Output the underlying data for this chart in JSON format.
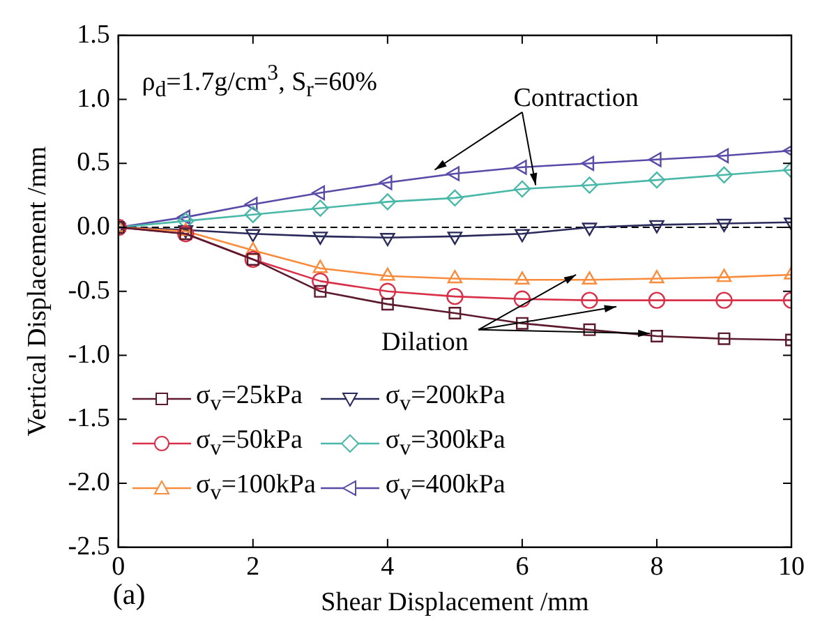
{
  "chart_data": {
    "type": "line",
    "xlabel": "Shear Displacement /mm",
    "ylabel": "Vertical Displacement /mm",
    "x": [
      0,
      1,
      2,
      3,
      4,
      5,
      6,
      7,
      8,
      9,
      10
    ],
    "series": [
      {
        "name": "σ$_{v}$=25kPa",
        "color": "#5c1a2e",
        "marker": "square",
        "values": [
          0,
          -0.05,
          -0.25,
          -0.5,
          -0.6,
          -0.67,
          -0.75,
          -0.8,
          -0.85,
          -0.87,
          -0.88
        ]
      },
      {
        "name": "σ$_{v}$=50kPa",
        "color": "#d9304a",
        "marker": "circle",
        "values": [
          0,
          -0.05,
          -0.25,
          -0.42,
          -0.5,
          -0.54,
          -0.56,
          -0.57,
          -0.57,
          -0.57,
          -0.57
        ]
      },
      {
        "name": "σ$_{v}$=100kPa",
        "color": "#f98c3c",
        "marker": "triangle",
        "values": [
          0,
          -0.03,
          -0.18,
          -0.32,
          -0.38,
          -0.4,
          -0.41,
          -0.41,
          -0.4,
          -0.39,
          -0.37
        ]
      },
      {
        "name": "σ$_{v}$=200kPa",
        "color": "#2a2a5a",
        "marker": "triangle-down",
        "values": [
          0,
          -0.02,
          -0.05,
          -0.07,
          -0.08,
          -0.07,
          -0.05,
          0,
          0.02,
          0.03,
          0.04
        ]
      },
      {
        "name": "σ$_{v}$=300kPa",
        "color": "#4ab8a8",
        "marker": "diamond",
        "values": [
          0,
          0.05,
          0.1,
          0.15,
          0.2,
          0.23,
          0.3,
          0.33,
          0.37,
          0.41,
          0.45
        ]
      },
      {
        "name": "σ$_{v}$=400kPa",
        "color": "#5a4aa8",
        "marker": "triangle-left",
        "values": [
          0,
          0.08,
          0.18,
          0.27,
          0.35,
          0.42,
          0.47,
          0.5,
          0.53,
          0.56,
          0.6
        ]
      }
    ],
    "xlim": [
      0,
      10
    ],
    "xticks": [
      0,
      2,
      4,
      6,
      8,
      10
    ],
    "ylim": [
      -2.5,
      1.5
    ],
    "yticks": [
      {
        "value": -2.5,
        "label": "-2.5"
      },
      {
        "value": -2,
        "label": "-2.0"
      },
      -1.5,
      {
        "value": -1,
        "label": "-1.0"
      },
      -0.5,
      {
        "value": 0,
        "label": "0.0"
      },
      0.5,
      {
        "value": 1,
        "label": "1.0"
      },
      1.5
    ],
    "ref_lines": [
      {
        "axis": "y",
        "value": 0,
        "color": "#000000",
        "line_style": "dashed"
      }
    ],
    "annotations": [
      "ρ$_{d}$=1.7g/cm$^{3}$, S$_{r}$=60%",
      {
        "text": "Contraction",
        "x": 4.7,
        "y": 0.45
      },
      {
        "text": "Dilation",
        "x": 6.8,
        "y": -0.37
      },
      "(a)"
    ],
    "legend": "bottom left",
    "grid": false,
    "line_style": "solid"
  }
}
